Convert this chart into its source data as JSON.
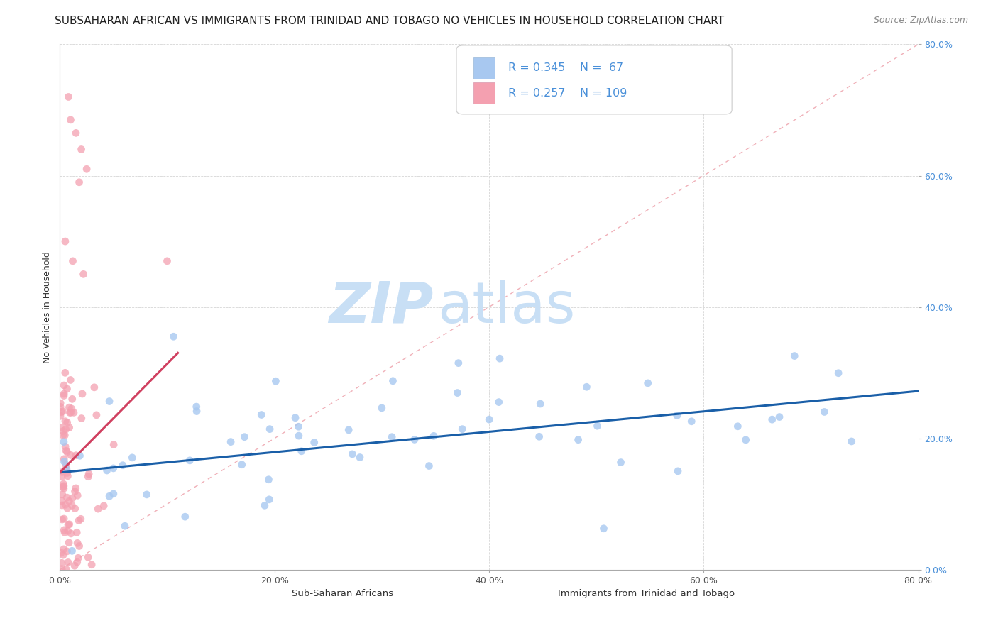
{
  "title": "SUBSAHARAN AFRICAN VS IMMIGRANTS FROM TRINIDAD AND TOBAGO NO VEHICLES IN HOUSEHOLD CORRELATION CHART",
  "source": "Source: ZipAtlas.com",
  "ylabel": "No Vehicles in Household",
  "legend_label_blue": "Sub-Saharan Africans",
  "legend_label_pink": "Immigrants from Trinidad and Tobago",
  "R_blue": 0.345,
  "N_blue": 67,
  "R_pink": 0.257,
  "N_pink": 109,
  "blue_color": "#a8c8f0",
  "pink_color": "#f4a0b0",
  "line_blue": "#1a5fa8",
  "line_pink": "#d04060",
  "line_diag_color": "#f0b0b8",
  "watermark_zip": "ZIP",
  "watermark_atlas": "atlas",
  "watermark_color_zip": "#c8dff5",
  "watermark_color_atlas": "#c8dff5",
  "title_fontsize": 11,
  "axis_label_fontsize": 9,
  "tick_fontsize": 9,
  "source_fontsize": 9,
  "legend_fontsize": 11,
  "xlim": [
    0.0,
    0.8
  ],
  "ylim": [
    0.0,
    0.8
  ],
  "xtick_vals": [
    0.0,
    0.2,
    0.4,
    0.6,
    0.8
  ],
  "ytick_vals": [
    0.0,
    0.2,
    0.4,
    0.6,
    0.8
  ],
  "blue_line_x": [
    0.0,
    0.8
  ],
  "blue_line_y": [
    0.148,
    0.272
  ],
  "pink_line_x": [
    0.0,
    0.11
  ],
  "pink_line_y": [
    0.148,
    0.33
  ]
}
